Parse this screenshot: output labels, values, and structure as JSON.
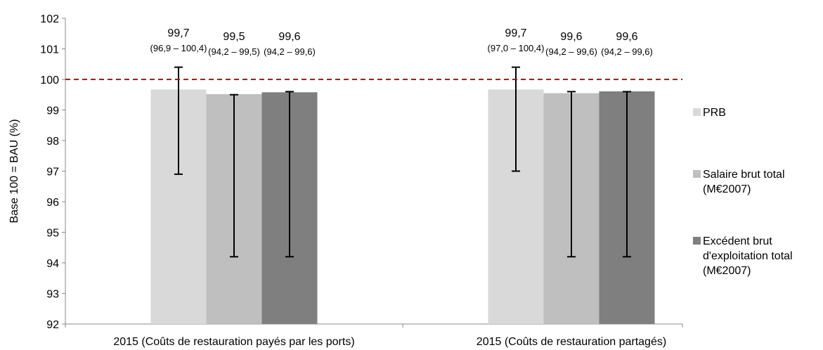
{
  "chart_data": {
    "type": "bar",
    "ylabel": "Base 100 = BAU (%)",
    "ylim": [
      92,
      102
    ],
    "yticks": [
      92,
      93,
      94,
      95,
      96,
      97,
      98,
      99,
      100,
      101,
      102
    ],
    "reference_line": {
      "value": 100,
      "color": "#c00000",
      "style": "dashed"
    },
    "categories": [
      "2015 (Coûts de restauration payés par les ports)",
      "2015 (Coûts de restauration partagés)"
    ],
    "series": [
      {
        "name": "PRB",
        "color": "#d9d9d9",
        "values": [
          99.67,
          99.67
        ],
        "error_low": [
          96.9,
          97.0
        ],
        "error_high": [
          100.4,
          100.4
        ],
        "value_labels": [
          "99,7",
          "99,7"
        ],
        "range_labels": [
          "(96,9 – 100,4)",
          "(97,0 – 100,4)"
        ]
      },
      {
        "name": "Salaire brut total\n(M€2007)",
        "color": "#bfbfbf",
        "values": [
          99.52,
          99.55
        ],
        "error_low": [
          94.2,
          94.2
        ],
        "error_high": [
          99.5,
          99.6
        ],
        "value_labels": [
          "99,5",
          "99,6"
        ],
        "range_labels": [
          "(94,2 – 99,5)",
          "(94,2 – 99,6)"
        ]
      },
      {
        "name": "Excédent brut\nd'exploitation total\n(M€2007)",
        "color": "#7f7f7f",
        "values": [
          99.58,
          99.61
        ],
        "error_low": [
          94.2,
          94.2
        ],
        "error_high": [
          99.6,
          99.6
        ],
        "value_labels": [
          "99,6",
          "99,6"
        ],
        "range_labels": [
          "(94,2 – 99,6)",
          "(94,2 – 99,6)"
        ]
      }
    ],
    "legend_position": "right"
  }
}
